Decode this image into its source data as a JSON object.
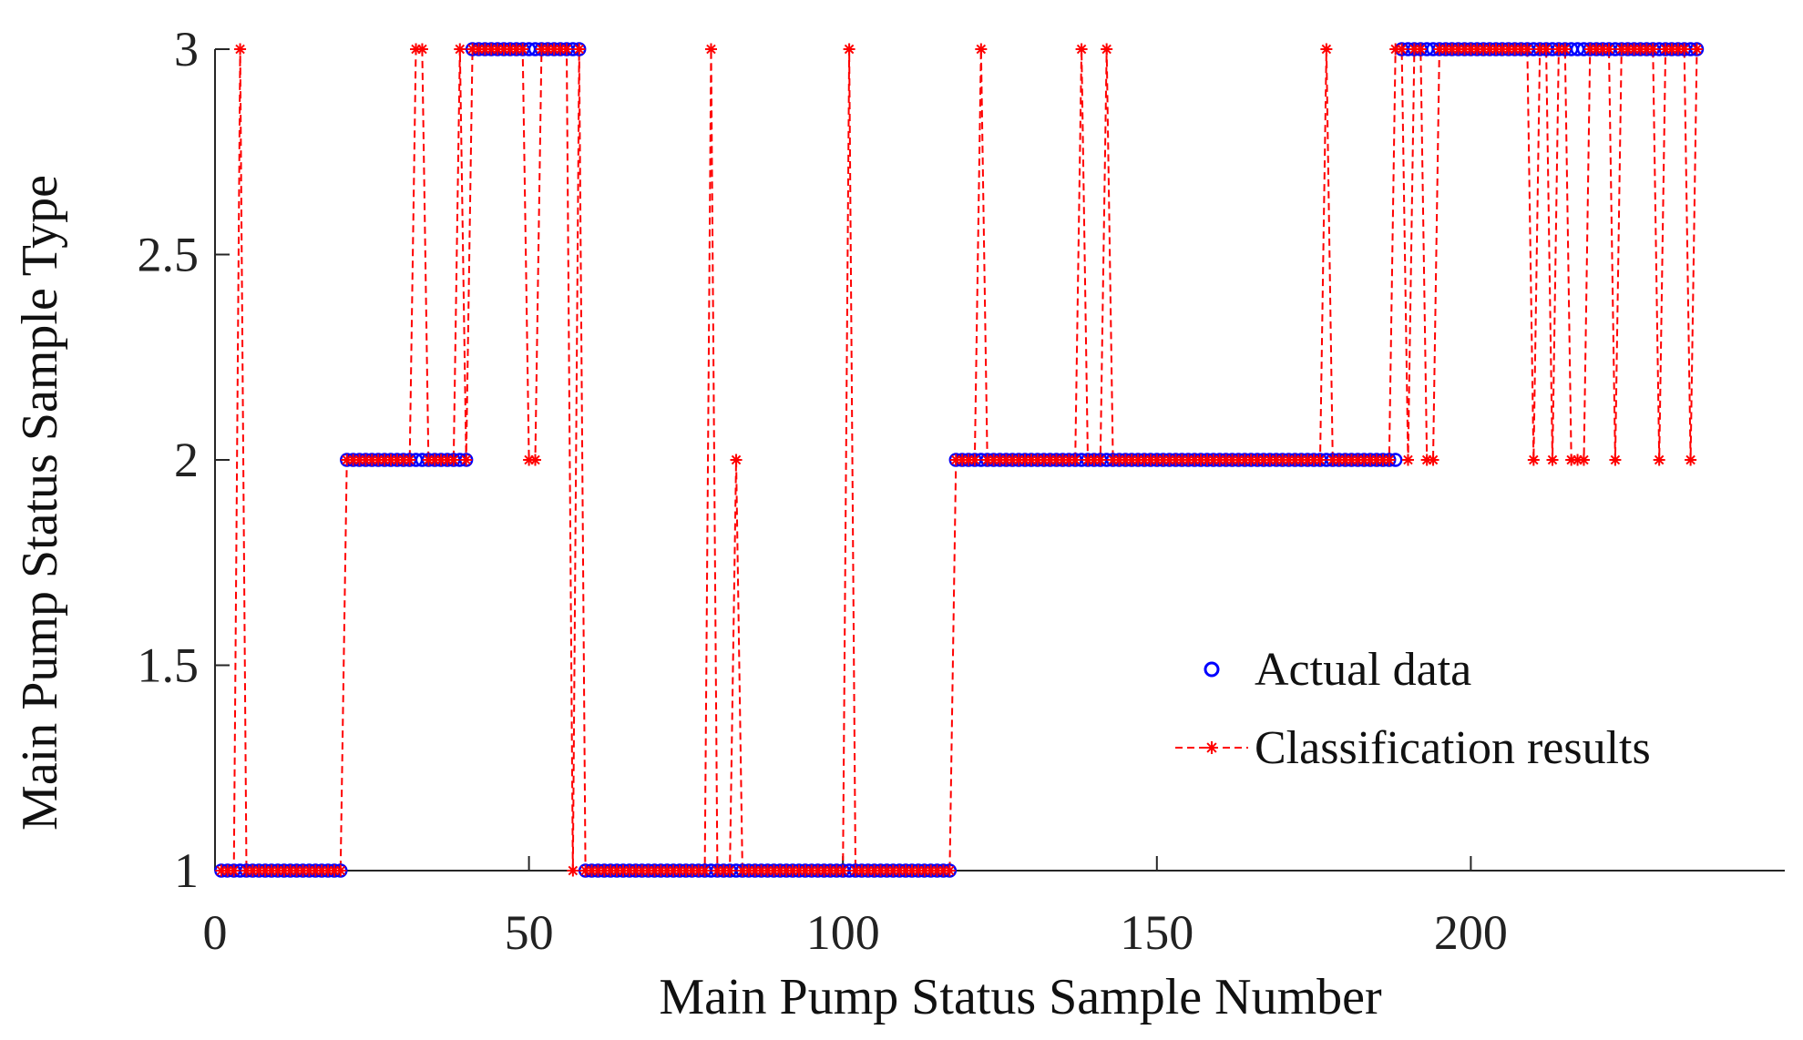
{
  "chart_data": {
    "type": "scatter",
    "xlabel": "Main Pump Status Sample Number",
    "ylabel": "Main Pump Status Sample Type",
    "xlim": [
      0,
      250
    ],
    "ylim": [
      1,
      3
    ],
    "xticks": [
      0,
      50,
      100,
      150,
      200
    ],
    "xtick_labels": [
      "0",
      "50",
      "100",
      "150",
      "200"
    ],
    "yticks": [
      1,
      1.5,
      2,
      2.5,
      3
    ],
    "ytick_labels": [
      "1",
      "1.5",
      "2",
      "2.5",
      "3"
    ],
    "grid": false,
    "legend_position": "right",
    "series": [
      {
        "name": "Actual data",
        "style": "circle-markers",
        "color": "#0000ff",
        "segments": [
          {
            "from": 1,
            "to": 20,
            "value": 1
          },
          {
            "from": 21,
            "to": 40,
            "value": 2
          },
          {
            "from": 41,
            "to": 58,
            "value": 3
          },
          {
            "from": 59,
            "to": 117,
            "value": 1
          },
          {
            "from": 118,
            "to": 188,
            "value": 2
          },
          {
            "from": 189,
            "to": 236,
            "value": 3
          }
        ]
      },
      {
        "name": "Classification results",
        "style": "dashed-line-star-markers",
        "color": "#ff0000",
        "base_segments": [
          {
            "from": 1,
            "to": 20,
            "value": 1
          },
          {
            "from": 21,
            "to": 40,
            "value": 2
          },
          {
            "from": 41,
            "to": 58,
            "value": 3
          },
          {
            "from": 59,
            "to": 117,
            "value": 1
          },
          {
            "from": 118,
            "to": 188,
            "value": 2
          },
          {
            "from": 189,
            "to": 236,
            "value": 3
          }
        ],
        "misclassified": [
          {
            "x": 4,
            "value": 3
          },
          {
            "x": 32,
            "value": 3
          },
          {
            "x": 33,
            "value": 3
          },
          {
            "x": 39,
            "value": 3
          },
          {
            "x": 50,
            "value": 2
          },
          {
            "x": 51,
            "value": 2
          },
          {
            "x": 57,
            "value": 1
          },
          {
            "x": 79,
            "value": 3
          },
          {
            "x": 83,
            "value": 2
          },
          {
            "x": 101,
            "value": 3
          },
          {
            "x": 122,
            "value": 3
          },
          {
            "x": 138,
            "value": 3
          },
          {
            "x": 142,
            "value": 3
          },
          {
            "x": 177,
            "value": 3
          },
          {
            "x": 188,
            "value": 3
          },
          {
            "x": 190,
            "value": 2
          },
          {
            "x": 193,
            "value": 2
          },
          {
            "x": 194,
            "value": 2
          },
          {
            "x": 210,
            "value": 2
          },
          {
            "x": 213,
            "value": 2
          },
          {
            "x": 216,
            "value": 2
          },
          {
            "x": 217,
            "value": 2
          },
          {
            "x": 218,
            "value": 2
          },
          {
            "x": 223,
            "value": 2
          },
          {
            "x": 230,
            "value": 2
          },
          {
            "x": 235,
            "value": 2
          }
        ]
      }
    ]
  }
}
